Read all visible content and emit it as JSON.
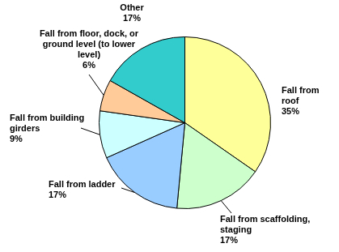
{
  "chart_data": {
    "type": "pie",
    "categories": [
      "Fall from roof",
      "Fall from scaffolding, staging",
      "Fall from ladder",
      "Fall from building girders",
      "Fall from floor, dock, or ground level (to lower level)",
      "Other"
    ],
    "values": [
      35,
      17,
      17,
      9,
      6,
      17
    ],
    "value_labels": [
      "35%",
      "17%",
      "17%",
      "9%",
      "6%",
      "17%"
    ],
    "colors": [
      "#ffff99",
      "#ccffcc",
      "#99ccff",
      "#ccffff",
      "#ffcc99",
      "#33cccc"
    ],
    "data_labels": true
  }
}
